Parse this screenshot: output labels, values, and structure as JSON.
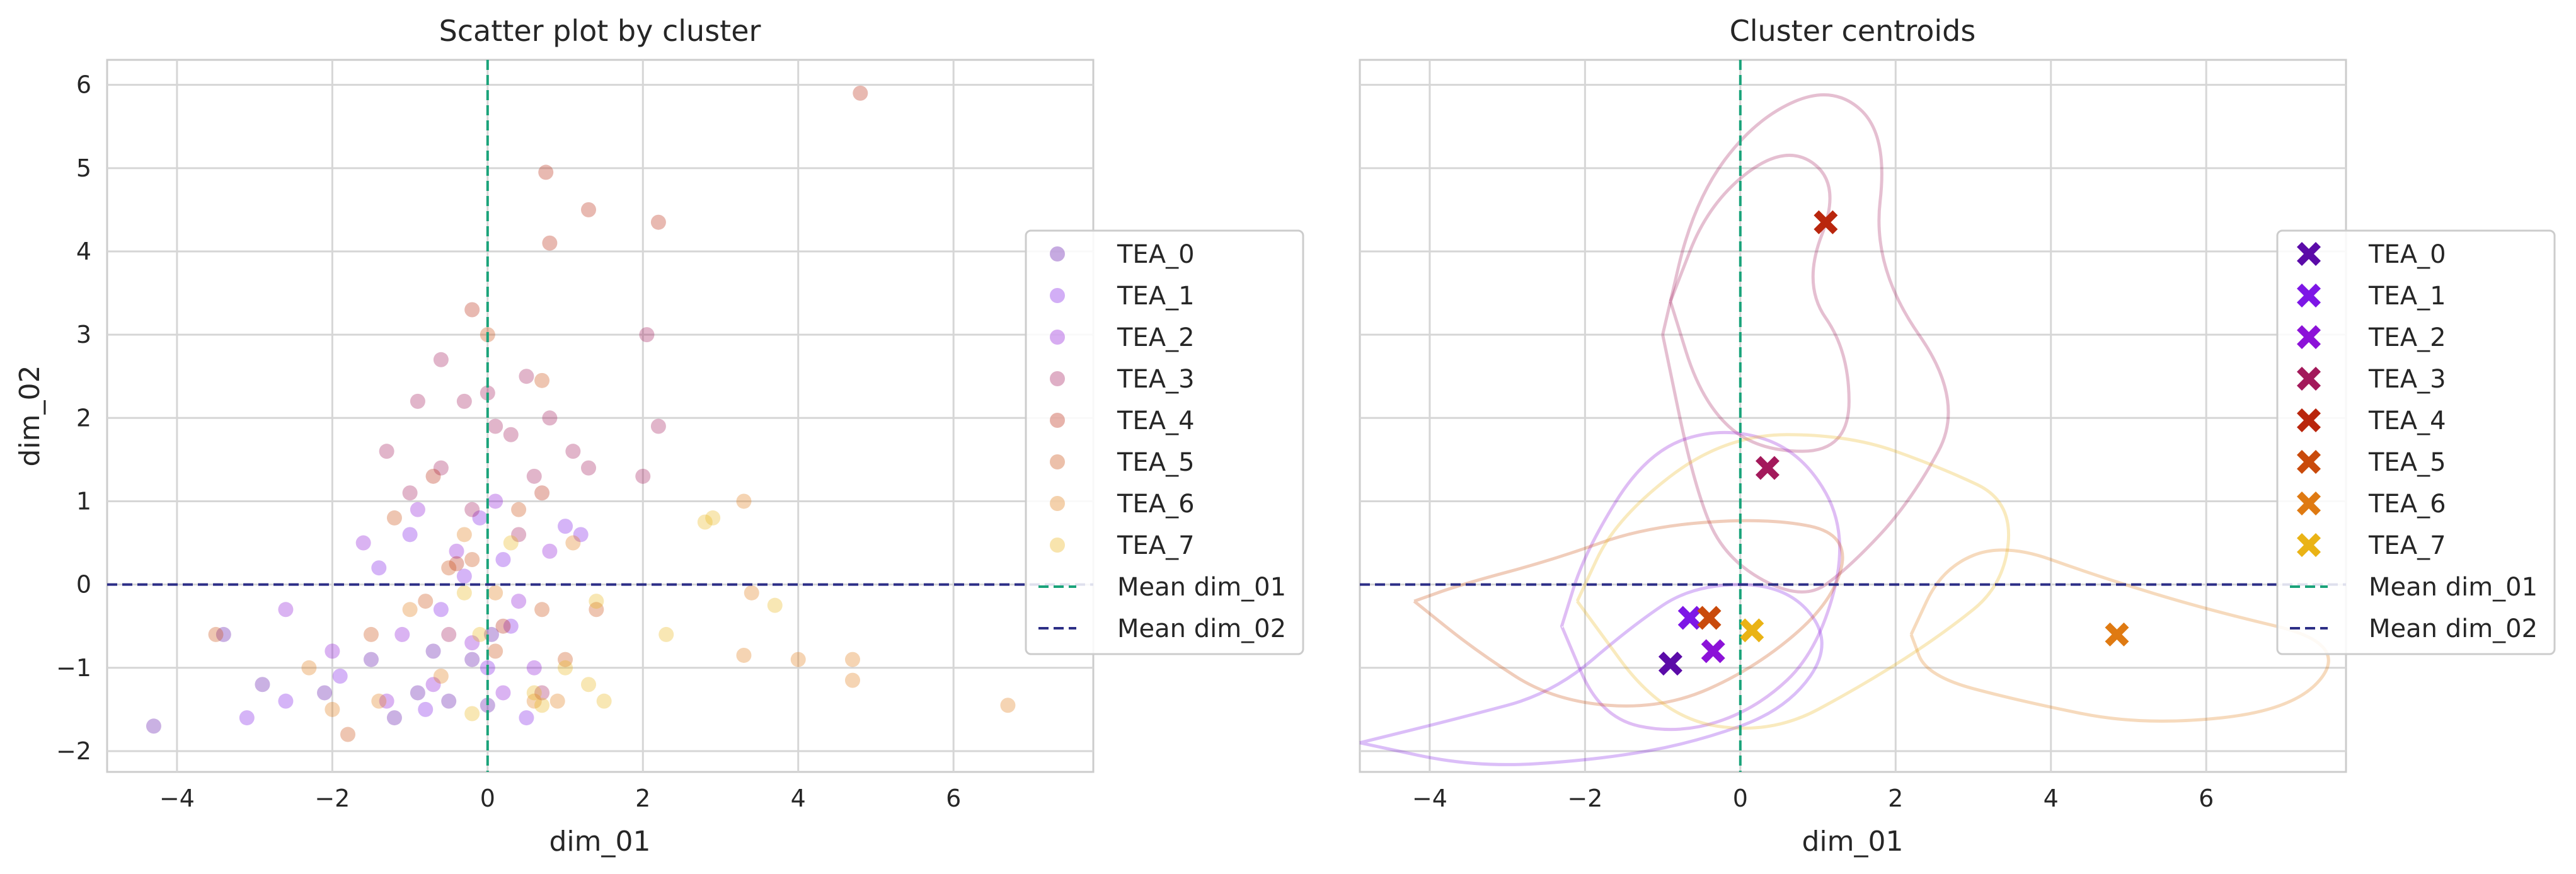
{
  "colors": {
    "TEA_0": "#5b0ba8",
    "TEA_1": "#7d16e6",
    "TEA_2": "#8c12d8",
    "TEA_3": "#a3195b",
    "TEA_4": "#b9260d",
    "TEA_5": "#c94a0b",
    "TEA_6": "#df7a12",
    "TEA_7": "#eab315",
    "mean_x": "#1aa37a",
    "mean_y": "#2c2e86"
  },
  "chart_data": [
    {
      "type": "scatter",
      "title": "Scatter plot by cluster",
      "xlabel": "dim_01",
      "ylabel": "dim_02",
      "xlim": [
        -4.9,
        7.8
      ],
      "ylim": [
        -2.25,
        6.3
      ],
      "xticks": [
        -4,
        -2,
        0,
        2,
        4,
        6
      ],
      "yticks": [
        -2,
        -1,
        0,
        1,
        2,
        3,
        4,
        5,
        6
      ],
      "grid": true,
      "legend_position": "right",
      "legend": [
        "TEA_0",
        "TEA_1",
        "TEA_2",
        "TEA_3",
        "TEA_4",
        "TEA_5",
        "TEA_6",
        "TEA_7",
        "Mean dim_01",
        "Mean dim_02"
      ],
      "mean_lines": {
        "dim_01": 0.0,
        "dim_02": 0.0
      },
      "series": [
        {
          "name": "TEA_0",
          "points": [
            [
              -4.3,
              -1.7
            ],
            [
              -3.4,
              -0.6
            ],
            [
              -2.9,
              -1.2
            ],
            [
              -2.1,
              -1.3
            ],
            [
              -1.5,
              -0.9
            ],
            [
              -1.2,
              -1.6
            ],
            [
              -0.9,
              -1.3
            ],
            [
              -0.7,
              -0.8
            ],
            [
              -0.5,
              -1.4
            ],
            [
              -0.2,
              -0.9
            ],
            [
              0.0,
              -1.45
            ],
            [
              0.05,
              -0.6
            ]
          ]
        },
        {
          "name": "TEA_1",
          "points": [
            [
              -3.1,
              -1.6
            ],
            [
              -2.6,
              -1.4
            ],
            [
              -1.9,
              -1.1
            ],
            [
              -1.4,
              0.2
            ],
            [
              -1.0,
              0.6
            ],
            [
              -0.8,
              -1.5
            ],
            [
              -0.6,
              -0.3
            ],
            [
              -0.3,
              0.1
            ],
            [
              0.0,
              -1.0
            ],
            [
              0.2,
              0.3
            ],
            [
              0.5,
              -1.6
            ],
            [
              1.0,
              0.7
            ],
            [
              1.2,
              0.6
            ],
            [
              -0.1,
              0.8
            ],
            [
              0.3,
              -0.5
            ]
          ]
        },
        {
          "name": "TEA_2",
          "points": [
            [
              -2.6,
              -0.3
            ],
            [
              -2.0,
              -0.8
            ],
            [
              -1.6,
              0.5
            ],
            [
              -1.1,
              -0.6
            ],
            [
              -0.9,
              0.9
            ],
            [
              -0.7,
              -1.2
            ],
            [
              -0.4,
              0.4
            ],
            [
              -0.2,
              -0.7
            ],
            [
              0.1,
              1.0
            ],
            [
              0.4,
              -0.2
            ],
            [
              0.6,
              -1.0
            ],
            [
              0.8,
              0.4
            ],
            [
              -1.3,
              -1.4
            ],
            [
              0.2,
              -1.3
            ]
          ]
        },
        {
          "name": "TEA_3",
          "points": [
            [
              -1.3,
              1.6
            ],
            [
              -0.9,
              2.2
            ],
            [
              -0.6,
              2.7
            ],
            [
              -0.3,
              2.2
            ],
            [
              0.0,
              2.3
            ],
            [
              0.3,
              1.8
            ],
            [
              0.5,
              2.5
            ],
            [
              0.6,
              1.3
            ],
            [
              0.8,
              2.0
            ],
            [
              1.1,
              1.6
            ],
            [
              1.3,
              1.4
            ],
            [
              -1.0,
              1.1
            ],
            [
              -0.6,
              1.4
            ],
            [
              0.1,
              1.9
            ],
            [
              2.0,
              1.3
            ],
            [
              2.2,
              1.9
            ],
            [
              2.05,
              3.0
            ],
            [
              -0.2,
              0.9
            ],
            [
              0.4,
              0.6
            ],
            [
              0.7,
              -1.3
            ],
            [
              -0.5,
              -0.6
            ]
          ]
        },
        {
          "name": "TEA_4",
          "points": [
            [
              0.75,
              4.95
            ],
            [
              0.7,
              1.1
            ],
            [
              1.3,
              4.5
            ],
            [
              -0.2,
              3.3
            ],
            [
              0.8,
              4.1
            ],
            [
              2.2,
              4.35
            ],
            [
              4.8,
              5.9
            ],
            [
              -0.4,
              0.25
            ],
            [
              0.2,
              -0.5
            ],
            [
              -0.7,
              1.3
            ]
          ]
        },
        {
          "name": "TEA_5",
          "points": [
            [
              -1.5,
              -0.6
            ],
            [
              -1.2,
              0.8
            ],
            [
              -0.8,
              -0.2
            ],
            [
              -0.5,
              0.2
            ],
            [
              -0.2,
              0.3
            ],
            [
              0.1,
              -0.8
            ],
            [
              0.4,
              0.9
            ],
            [
              0.7,
              -0.3
            ],
            [
              1.0,
              -0.9
            ],
            [
              1.4,
              -0.3
            ],
            [
              -1.8,
              -1.8
            ],
            [
              -3.5,
              -0.6
            ],
            [
              0.0,
              3.0
            ],
            [
              0.7,
              2.45
            ]
          ]
        },
        {
          "name": "TEA_6",
          "points": [
            [
              -2.0,
              -1.5
            ],
            [
              -1.4,
              -1.4
            ],
            [
              -1.0,
              -0.3
            ],
            [
              -0.6,
              -1.1
            ],
            [
              -0.3,
              0.6
            ],
            [
              0.1,
              -0.1
            ],
            [
              0.6,
              -1.4
            ],
            [
              1.1,
              0.5
            ],
            [
              3.3,
              1.0
            ],
            [
              3.4,
              -0.1
            ],
            [
              4.0,
              -0.9
            ],
            [
              4.7,
              -1.15
            ],
            [
              6.7,
              -1.45
            ],
            [
              3.3,
              -0.85
            ],
            [
              4.7,
              -0.9
            ],
            [
              -2.3,
              -1.0
            ],
            [
              0.9,
              -1.4
            ]
          ]
        },
        {
          "name": "TEA_7",
          "points": [
            [
              -0.1,
              -0.6
            ],
            [
              0.3,
              0.5
            ],
            [
              0.6,
              -1.3
            ],
            [
              1.0,
              -1.0
            ],
            [
              1.5,
              -1.4
            ],
            [
              1.4,
              -0.2
            ],
            [
              2.3,
              -0.6
            ],
            [
              2.8,
              0.75
            ],
            [
              2.9,
              0.8
            ],
            [
              3.7,
              -0.25
            ],
            [
              0.7,
              -1.45
            ],
            [
              -0.2,
              -1.55
            ],
            [
              1.3,
              -1.2
            ],
            [
              -0.3,
              -0.1
            ]
          ]
        }
      ]
    },
    {
      "type": "scatter",
      "title": "Cluster centroids",
      "xlabel": "dim_01",
      "ylabel": "",
      "xlim": [
        -4.9,
        7.8
      ],
      "ylim": [
        -2.25,
        6.3
      ],
      "xticks": [
        -4,
        -2,
        0,
        2,
        4,
        6
      ],
      "grid": true,
      "legend_position": "right",
      "legend": [
        "TEA_0",
        "TEA_1",
        "TEA_2",
        "TEA_3",
        "TEA_4",
        "TEA_5",
        "TEA_6",
        "TEA_7",
        "Mean dim_01",
        "Mean dim_02"
      ],
      "mean_lines": {
        "dim_01": 0.0,
        "dim_02": 0.0
      },
      "centroids": [
        {
          "name": "TEA_0",
          "x": -0.9,
          "y": -0.95
        },
        {
          "name": "TEA_1",
          "x": -0.65,
          "y": -0.4
        },
        {
          "name": "TEA_2",
          "x": -0.35,
          "y": -0.8
        },
        {
          "name": "TEA_3",
          "x": 0.35,
          "y": 1.4
        },
        {
          "name": "TEA_4",
          "x": 1.1,
          "y": 4.35
        },
        {
          "name": "TEA_5",
          "x": -0.4,
          "y": -0.4
        },
        {
          "name": "TEA_6",
          "x": 4.85,
          "y": -0.6
        },
        {
          "name": "TEA_7",
          "x": 0.15,
          "y": -0.55
        }
      ],
      "contours": [
        {
          "name": "TEA_3",
          "points": [
            [
              -1.0,
              3.0
            ],
            [
              -0.6,
              4.6
            ],
            [
              0.2,
              5.6
            ],
            [
              1.2,
              6.0
            ],
            [
              1.9,
              5.4
            ],
            [
              1.7,
              3.8
            ],
            [
              2.9,
              2.2
            ],
            [
              2.2,
              1.0
            ],
            [
              1.4,
              0.2
            ],
            [
              0.8,
              -0.2
            ],
            [
              -0.2,
              0.3
            ],
            [
              -0.6,
              1.2
            ],
            [
              -1.0,
              3.0
            ]
          ]
        },
        {
          "name": "TEA_3",
          "points": [
            [
              -0.9,
              3.4
            ],
            [
              -0.4,
              4.6
            ],
            [
              0.6,
              5.3
            ],
            [
              1.3,
              4.8
            ],
            [
              0.8,
              3.6
            ],
            [
              1.4,
              2.8
            ],
            [
              1.4,
              1.6
            ],
            [
              0.2,
              1.6
            ],
            [
              -0.5,
              2.2
            ],
            [
              -0.9,
              3.4
            ]
          ]
        },
        {
          "name": "TEA_1",
          "points": [
            [
              -4.9,
              -1.9
            ],
            [
              -3.6,
              -1.6
            ],
            [
              -2.4,
              -1.3
            ],
            [
              -1.4,
              -0.5
            ],
            [
              -0.6,
              0.0
            ],
            [
              0.6,
              0.0
            ],
            [
              1.2,
              -0.7
            ],
            [
              0.6,
              -1.5
            ],
            [
              -0.6,
              -1.9
            ],
            [
              -1.8,
              -2.1
            ],
            [
              -3.4,
              -2.2
            ],
            [
              -4.9,
              -1.9
            ]
          ]
        },
        {
          "name": "TEA_2",
          "points": [
            [
              -2.3,
              -0.5
            ],
            [
              -2.0,
              0.4
            ],
            [
              -1.2,
              1.6
            ],
            [
              -0.2,
              1.9
            ],
            [
              0.8,
              1.6
            ],
            [
              1.4,
              0.6
            ],
            [
              1.0,
              -0.8
            ],
            [
              0.2,
              -1.5
            ],
            [
              -0.8,
              -1.8
            ],
            [
              -1.8,
              -1.6
            ],
            [
              -2.3,
              -0.5
            ]
          ]
        },
        {
          "name": "TEA_5",
          "points": [
            [
              -4.2,
              -0.2
            ],
            [
              -3.4,
              -0.8
            ],
            [
              -2.4,
              -1.4
            ],
            [
              -1.0,
              -1.5
            ],
            [
              0.2,
              -1.0
            ],
            [
              1.2,
              -0.2
            ],
            [
              1.4,
              0.6
            ],
            [
              0.4,
              0.8
            ],
            [
              -1.2,
              0.7
            ],
            [
              -2.4,
              0.3
            ],
            [
              -3.6,
              0.0
            ],
            [
              -4.2,
              -0.2
            ]
          ]
        },
        {
          "name": "TEA_6",
          "points": [
            [
              2.2,
              -0.6
            ],
            [
              2.6,
              0.2
            ],
            [
              3.4,
              0.5
            ],
            [
              4.6,
              0.1
            ],
            [
              6.0,
              -0.3
            ],
            [
              7.8,
              -0.7
            ],
            [
              7.2,
              -1.5
            ],
            [
              5.2,
              -1.7
            ],
            [
              3.6,
              -1.4
            ],
            [
              2.4,
              -1.1
            ],
            [
              2.2,
              -0.6
            ]
          ]
        },
        {
          "name": "TEA_7",
          "points": [
            [
              -2.1,
              -0.2
            ],
            [
              -1.6,
              0.8
            ],
            [
              -0.2,
              1.8
            ],
            [
              1.4,
              1.8
            ],
            [
              2.6,
              1.4
            ],
            [
              3.5,
              1.0
            ],
            [
              3.4,
              0.0
            ],
            [
              2.6,
              -0.6
            ],
            [
              1.6,
              -1.2
            ],
            [
              0.4,
              -1.8
            ],
            [
              -1.0,
              -1.6
            ],
            [
              -2.1,
              -0.2
            ]
          ]
        }
      ]
    }
  ]
}
